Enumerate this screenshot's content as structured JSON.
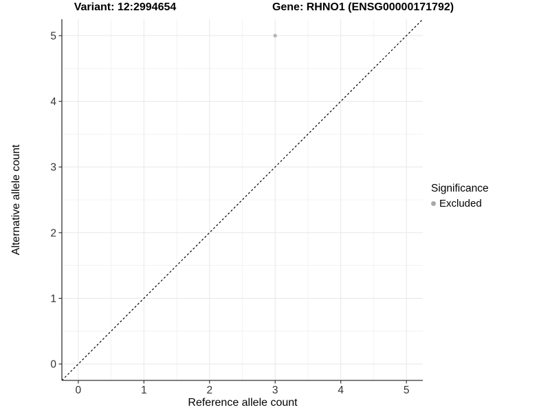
{
  "chart_data": {
    "type": "scatter",
    "title_left": "Variant: 12:2994654",
    "title_right": "Gene: RHNO1 (ENSG00000171792)",
    "xlabel": "Reference allele count",
    "ylabel": "Alternative allele count",
    "xlim": [
      -0.25,
      5.25
    ],
    "ylim": [
      -0.25,
      5.25
    ],
    "xticks": [
      0,
      1,
      2,
      3,
      4,
      5
    ],
    "yticks": [
      0,
      1,
      2,
      3,
      4,
      5
    ],
    "xminor": [
      0.5,
      1.5,
      2.5,
      3.5,
      4.5
    ],
    "yminor": [
      0.5,
      1.5,
      2.5,
      3.5,
      4.5
    ],
    "grid": "major+minor",
    "points": [
      {
        "x": 3,
        "y": 5,
        "series": "Excluded"
      }
    ],
    "reference_line": {
      "kind": "identity",
      "slope": 1,
      "intercept": 0,
      "style": "dashed",
      "color": "#000000"
    },
    "legend": {
      "title": "Significance",
      "position": "right",
      "entries": [
        {
          "label": "Excluded",
          "color": "#a9a9a9"
        }
      ]
    },
    "colors": {
      "background": "#ffffff",
      "grid_major": "#e7e7e7",
      "grid_minor": "#f3f3f3",
      "axis_line": "#333333",
      "tick_label": "#333333",
      "point": "#b3b3b3"
    }
  }
}
